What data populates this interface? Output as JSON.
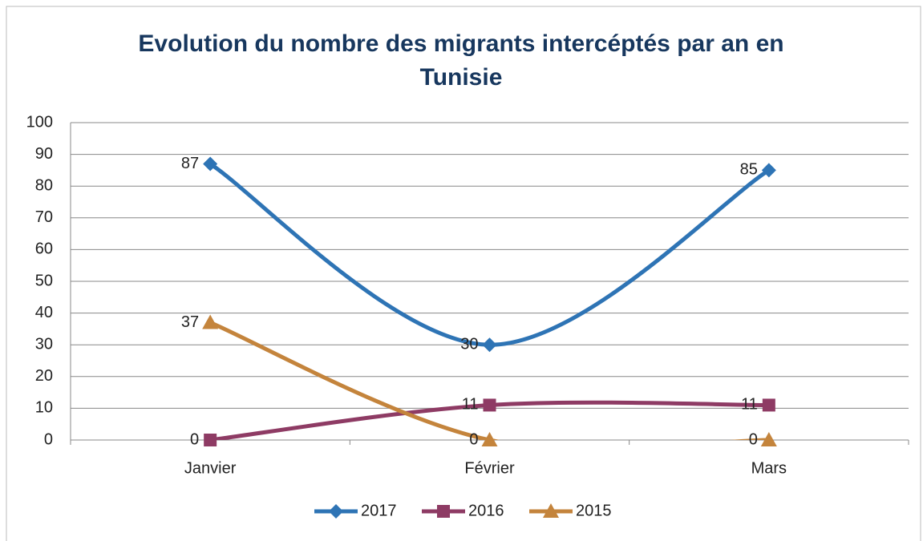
{
  "chart_data": {
    "type": "line",
    "title": "Evolution du nombre des migrants intercéptés par an en Tunisie",
    "categories": [
      "Janvier",
      "Février",
      "Mars"
    ],
    "series": [
      {
        "name": "2017",
        "color": "#2e74b5",
        "marker": "diamond",
        "values": [
          87,
          30,
          85
        ]
      },
      {
        "name": "2016",
        "color": "#8e3b64",
        "marker": "square",
        "values": [
          0,
          11,
          11
        ]
      },
      {
        "name": "2015",
        "color": "#c4843c",
        "marker": "triangle",
        "values": [
          37,
          0,
          0
        ]
      }
    ],
    "ylim": [
      0,
      100
    ],
    "yticks": [
      0,
      10,
      20,
      30,
      40,
      50,
      60,
      70,
      80,
      90,
      100
    ],
    "grid": true,
    "smooth": true,
    "legend": "bottom"
  }
}
